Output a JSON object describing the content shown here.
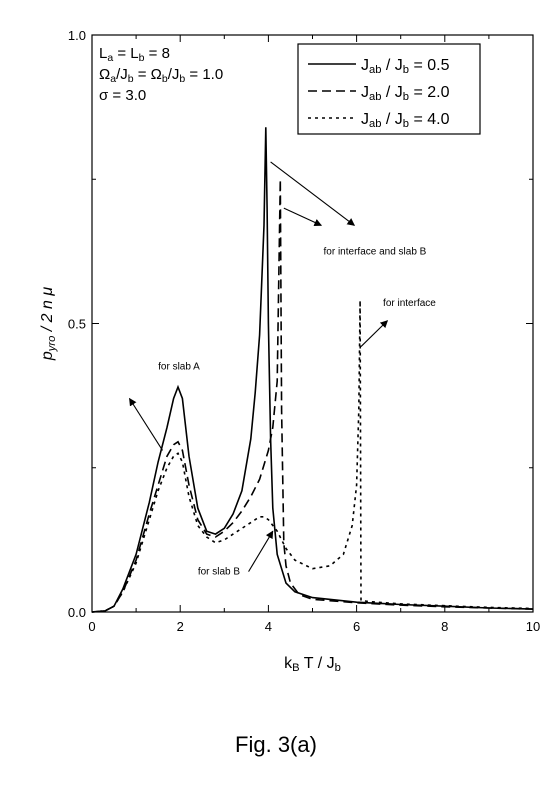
{
  "chart_data": {
    "type": "line",
    "title": "",
    "xlabel": {
      "main": "k",
      "sub1": "B",
      "mid": " T / J",
      "sub2": "b"
    },
    "ylabel": {
      "main": "p",
      "sub": "yro",
      "rest": " / 2 n μ"
    },
    "xlim": [
      0,
      10
    ],
    "ylim": [
      0,
      1.0
    ],
    "xticks": [
      "0",
      "2",
      "4",
      "6",
      "8",
      "10"
    ],
    "yticks": [
      "0.0",
      "0.5",
      "1.0"
    ],
    "grid": false,
    "legend_position": "top-right",
    "params": [
      {
        "parts": [
          [
            "L",
            ""
          ],
          [
            "a",
            "sub"
          ],
          [
            " = L",
            ""
          ],
          [
            "b",
            "sub"
          ],
          [
            " = 8",
            ""
          ]
        ]
      },
      {
        "parts": [
          [
            "Ω",
            ""
          ],
          [
            "a",
            "sub"
          ],
          [
            "/J",
            ""
          ],
          [
            "b",
            "sub"
          ],
          [
            " = Ω",
            ""
          ],
          [
            "b",
            "sub"
          ],
          [
            "/J",
            ""
          ],
          [
            "b",
            "sub"
          ],
          [
            " = 1.0",
            ""
          ]
        ]
      },
      {
        "parts": [
          [
            "σ = 3.0",
            ""
          ]
        ]
      }
    ],
    "series": [
      {
        "name": "J_ab / J_b = 0.5",
        "legend_parts": [
          [
            "J",
            ""
          ],
          [
            "ab",
            "sub"
          ],
          [
            " / J",
            ""
          ],
          [
            "b",
            "sub"
          ],
          [
            " = 0.5",
            ""
          ]
        ],
        "dash": "",
        "x": [
          0,
          0.3,
          0.5,
          0.7,
          1.0,
          1.3,
          1.5,
          1.7,
          1.85,
          1.95,
          2.05,
          2.2,
          2.4,
          2.6,
          2.8,
          3.0,
          3.2,
          3.4,
          3.6,
          3.7,
          3.8,
          3.9,
          3.94,
          3.97,
          4.0,
          4.05,
          4.1,
          4.2,
          4.4,
          4.6,
          5.0,
          6.0,
          7.0,
          8.0,
          9.0,
          10.0
        ],
        "y": [
          0,
          0.002,
          0.01,
          0.04,
          0.1,
          0.19,
          0.26,
          0.32,
          0.37,
          0.39,
          0.37,
          0.27,
          0.18,
          0.14,
          0.135,
          0.145,
          0.17,
          0.21,
          0.3,
          0.38,
          0.48,
          0.67,
          0.84,
          0.7,
          0.5,
          0.3,
          0.18,
          0.1,
          0.05,
          0.035,
          0.025,
          0.017,
          0.013,
          0.01,
          0.007,
          0.005
        ]
      },
      {
        "name": "J_ab / J_b = 2.0",
        "legend_parts": [
          [
            "J",
            ""
          ],
          [
            "ab",
            "sub"
          ],
          [
            " / J",
            ""
          ],
          [
            "b",
            "sub"
          ],
          [
            " = 2.0",
            ""
          ]
        ],
        "dash": "9,5",
        "x": [
          0,
          0.3,
          0.5,
          0.7,
          1.0,
          1.3,
          1.5,
          1.7,
          1.85,
          1.95,
          2.05,
          2.2,
          2.4,
          2.6,
          2.8,
          3.0,
          3.2,
          3.4,
          3.6,
          3.8,
          4.0,
          4.1,
          4.2,
          4.27,
          4.3,
          4.35,
          4.4,
          4.5,
          4.7,
          5.0,
          6.0,
          7.0,
          8.0,
          9.0,
          10.0
        ],
        "y": [
          0,
          0.002,
          0.01,
          0.035,
          0.09,
          0.17,
          0.22,
          0.27,
          0.29,
          0.295,
          0.28,
          0.22,
          0.16,
          0.135,
          0.13,
          0.14,
          0.155,
          0.175,
          0.2,
          0.23,
          0.28,
          0.32,
          0.4,
          0.75,
          0.35,
          0.12,
          0.08,
          0.05,
          0.03,
          0.022,
          0.016,
          0.012,
          0.009,
          0.007,
          0.005
        ]
      },
      {
        "name": "J_ab / J_b = 4.0",
        "legend_parts": [
          [
            "J",
            ""
          ],
          [
            "ab",
            "sub"
          ],
          [
            " / J",
            ""
          ],
          [
            "b",
            "sub"
          ],
          [
            " = 4.0",
            ""
          ]
        ],
        "dash": "3,4",
        "x": [
          0,
          0.3,
          0.5,
          0.7,
          1.0,
          1.3,
          1.5,
          1.7,
          1.85,
          1.95,
          2.05,
          2.2,
          2.4,
          2.6,
          2.8,
          3.0,
          3.2,
          3.5,
          3.8,
          3.9,
          4.0,
          4.2,
          4.4,
          4.6,
          5.0,
          5.4,
          5.7,
          5.9,
          6.0,
          6.05,
          6.08,
          6.1,
          6.3,
          7.0,
          8.0,
          9.0,
          10.0
        ],
        "y": [
          0,
          0.002,
          0.01,
          0.035,
          0.085,
          0.16,
          0.21,
          0.25,
          0.27,
          0.275,
          0.26,
          0.2,
          0.15,
          0.13,
          0.12,
          0.125,
          0.135,
          0.15,
          0.165,
          0.165,
          0.16,
          0.14,
          0.11,
          0.09,
          0.075,
          0.08,
          0.1,
          0.15,
          0.22,
          0.35,
          0.54,
          0.02,
          0.018,
          0.014,
          0.011,
          0.008,
          0.006
        ]
      }
    ],
    "annotations": [
      {
        "text": "for interface and slab B",
        "tx": 5.25,
        "ty": 0.62,
        "arrows": [
          [
            4.05,
            0.78,
            5.95,
            0.67
          ],
          [
            4.35,
            0.7,
            5.2,
            0.67
          ]
        ]
      },
      {
        "text": "for interface",
        "tx": 6.6,
        "ty": 0.53,
        "arrows": [
          [
            6.1,
            0.46,
            6.7,
            0.505
          ]
        ]
      },
      {
        "text": "for slab A",
        "tx": 1.5,
        "ty": 0.42,
        "arrows": [
          [
            1.6,
            0.28,
            0.85,
            0.37
          ]
        ]
      },
      {
        "text": "for slab B",
        "tx": 2.4,
        "ty": 0.065,
        "arrows": [
          [
            3.55,
            0.07,
            4.1,
            0.14
          ]
        ]
      }
    ]
  },
  "caption": "Fig. 3(a)"
}
